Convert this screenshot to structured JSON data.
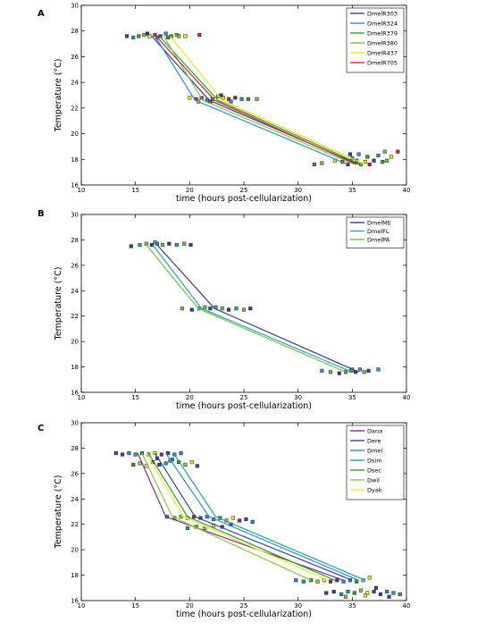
{
  "panel_labels": [
    "A",
    "B",
    "C"
  ],
  "axis": {
    "xlabel": "time (hours post-cellularization)",
    "ylabel": "Temperature (°C)"
  },
  "chart_data": [
    {
      "type": "line",
      "xlabel": "time (hours post-cellularization)",
      "ylabel": "Temperature (°C)",
      "xlim": [
        10,
        40
      ],
      "ylim": [
        16,
        30
      ],
      "xticks": [
        10,
        15,
        20,
        25,
        30,
        35,
        40
      ],
      "yticks": [
        16,
        18,
        20,
        22,
        24,
        26,
        28,
        30
      ],
      "legend": "top-right",
      "series": [
        {
          "name": "DmelR303",
          "color": "#3b3b8f",
          "x": [
            16.5,
            21.8,
            35.6
          ],
          "y": [
            27.6,
            22.6,
            17.6
          ]
        },
        {
          "name": "DmelR324",
          "color": "#2b8cd6",
          "x": [
            16.8,
            20.5,
            34.6
          ],
          "y": [
            27.6,
            22.6,
            17.6
          ]
        },
        {
          "name": "DmelR379",
          "color": "#2ca02c",
          "x": [
            17.2,
            22.6,
            35.8
          ],
          "y": [
            27.6,
            22.6,
            17.6
          ]
        },
        {
          "name": "DmelR380",
          "color": "#7fbf3f",
          "x": [
            17.6,
            21.2,
            35.2
          ],
          "y": [
            27.6,
            22.6,
            17.6
          ]
        },
        {
          "name": "DmelR437",
          "color": "#f2e21a",
          "x": [
            18.2,
            23.0,
            36.2
          ],
          "y": [
            27.6,
            22.6,
            17.6
          ]
        },
        {
          "name": "DmelR705",
          "color": "#e0242a",
          "x": [
            16.9,
            22.3,
            35.4
          ],
          "y": [
            27.6,
            22.6,
            17.6
          ]
        }
      ],
      "points": [
        {
          "x": 14.2,
          "y": 27.6
        },
        {
          "x": 14.8,
          "y": 27.5
        },
        {
          "x": 15.3,
          "y": 27.6
        },
        {
          "x": 15.8,
          "y": 27.7
        },
        {
          "x": 16.3,
          "y": 27.6
        },
        {
          "x": 16.8,
          "y": 27.7
        },
        {
          "x": 17.3,
          "y": 27.6
        },
        {
          "x": 17.8,
          "y": 27.8
        },
        {
          "x": 18.3,
          "y": 27.6
        },
        {
          "x": 18.8,
          "y": 27.7
        },
        {
          "x": 19.6,
          "y": 27.6
        },
        {
          "x": 20.9,
          "y": 27.7
        },
        {
          "x": 16.1,
          "y": 27.8
        },
        {
          "x": 17.0,
          "y": 27.5
        },
        {
          "x": 18.0,
          "y": 27.5
        },
        {
          "x": 19.0,
          "y": 27.6
        },
        {
          "x": 20.0,
          "y": 22.8
        },
        {
          "x": 20.6,
          "y": 22.7
        },
        {
          "x": 21.1,
          "y": 22.8
        },
        {
          "x": 21.6,
          "y": 22.6
        },
        {
          "x": 22.1,
          "y": 22.7
        },
        {
          "x": 22.6,
          "y": 22.9
        },
        {
          "x": 23.1,
          "y": 22.8
        },
        {
          "x": 23.6,
          "y": 22.7
        },
        {
          "x": 24.2,
          "y": 22.8
        },
        {
          "x": 24.8,
          "y": 22.7
        },
        {
          "x": 25.4,
          "y": 22.7
        },
        {
          "x": 26.2,
          "y": 22.7
        },
        {
          "x": 20.8,
          "y": 22.5
        },
        {
          "x": 21.9,
          "y": 22.5
        },
        {
          "x": 22.9,
          "y": 23.0
        },
        {
          "x": 23.8,
          "y": 22.5
        },
        {
          "x": 31.5,
          "y": 17.6
        },
        {
          "x": 32.2,
          "y": 17.7
        },
        {
          "x": 33.4,
          "y": 17.9
        },
        {
          "x": 34.1,
          "y": 17.8
        },
        {
          "x": 34.6,
          "y": 17.6
        },
        {
          "x": 35.0,
          "y": 18.1
        },
        {
          "x": 35.4,
          "y": 17.9
        },
        {
          "x": 35.8,
          "y": 17.6
        },
        {
          "x": 36.2,
          "y": 17.8
        },
        {
          "x": 36.6,
          "y": 17.6
        },
        {
          "x": 37.0,
          "y": 17.9
        },
        {
          "x": 37.4,
          "y": 18.3
        },
        {
          "x": 37.8,
          "y": 17.8
        },
        {
          "x": 38.2,
          "y": 17.9
        },
        {
          "x": 38.6,
          "y": 18.2
        },
        {
          "x": 39.2,
          "y": 18.6
        },
        {
          "x": 34.8,
          "y": 18.4
        },
        {
          "x": 35.6,
          "y": 18.4
        },
        {
          "x": 36.4,
          "y": 18.2
        },
        {
          "x": 38.0,
          "y": 18.6
        }
      ]
    },
    {
      "type": "line",
      "xlabel": "time (hours post-cellularization)",
      "ylabel": "Temperature (°C)",
      "xlim": [
        10,
        40
      ],
      "ylim": [
        16,
        30
      ],
      "xticks": [
        10,
        15,
        20,
        25,
        30,
        35,
        40
      ],
      "yticks": [
        16,
        18,
        20,
        22,
        24,
        26,
        28,
        30
      ],
      "legend": "top-right",
      "series": [
        {
          "name": "DmelME",
          "color": "#3b3b8f",
          "x": [
            17.0,
            22.3,
            35.6
          ],
          "y": [
            27.6,
            22.6,
            17.6
          ]
        },
        {
          "name": "DmelFL",
          "color": "#2aa5a5",
          "x": [
            16.6,
            21.1,
            35.0
          ],
          "y": [
            27.6,
            22.6,
            17.6
          ]
        },
        {
          "name": "DmelPA",
          "color": "#6cc24a",
          "x": [
            16.0,
            20.8,
            34.4
          ],
          "y": [
            27.6,
            22.6,
            17.6
          ]
        }
      ],
      "points": [
        {
          "x": 14.6,
          "y": 27.5
        },
        {
          "x": 15.4,
          "y": 27.6
        },
        {
          "x": 16.0,
          "y": 27.7
        },
        {
          "x": 16.5,
          "y": 27.6
        },
        {
          "x": 17.0,
          "y": 27.7
        },
        {
          "x": 17.5,
          "y": 27.6
        },
        {
          "x": 18.1,
          "y": 27.7
        },
        {
          "x": 18.8,
          "y": 27.6
        },
        {
          "x": 19.5,
          "y": 27.7
        },
        {
          "x": 20.1,
          "y": 27.6
        },
        {
          "x": 16.8,
          "y": 27.8
        },
        {
          "x": 19.3,
          "y": 22.6
        },
        {
          "x": 20.2,
          "y": 22.5
        },
        {
          "x": 20.9,
          "y": 22.6
        },
        {
          "x": 21.4,
          "y": 22.7
        },
        {
          "x": 21.9,
          "y": 22.6
        },
        {
          "x": 22.4,
          "y": 22.7
        },
        {
          "x": 23.0,
          "y": 22.6
        },
        {
          "x": 23.6,
          "y": 22.5
        },
        {
          "x": 24.3,
          "y": 22.6
        },
        {
          "x": 25.0,
          "y": 22.5
        },
        {
          "x": 25.6,
          "y": 22.6
        },
        {
          "x": 32.2,
          "y": 17.7
        },
        {
          "x": 33.0,
          "y": 17.6
        },
        {
          "x": 33.8,
          "y": 17.5
        },
        {
          "x": 34.4,
          "y": 17.6
        },
        {
          "x": 34.9,
          "y": 17.7
        },
        {
          "x": 35.3,
          "y": 17.6
        },
        {
          "x": 35.7,
          "y": 17.8
        },
        {
          "x": 36.1,
          "y": 17.6
        },
        {
          "x": 36.5,
          "y": 17.7
        },
        {
          "x": 37.4,
          "y": 17.8
        },
        {
          "x": 35.0,
          "y": 17.8
        }
      ]
    },
    {
      "type": "line",
      "xlabel": "time (hours post-cellularization)",
      "ylabel": "Temperature (°C)",
      "xlim": [
        10,
        40
      ],
      "ylim": [
        16,
        30
      ],
      "xticks": [
        10,
        15,
        20,
        25,
        30,
        35,
        40
      ],
      "yticks": [
        16,
        18,
        20,
        22,
        24,
        26,
        28,
        30
      ],
      "legend": "top-right",
      "series": [
        {
          "name": "Dana",
          "color": "#7b2a8e",
          "x": [
            15.2,
            17.8,
            34.2
          ],
          "y": [
            27.6,
            22.6,
            17.6
          ]
        },
        {
          "name": "Dere",
          "color": "#3a3f9a",
          "x": [
            16.8,
            20.5,
            35.0
          ],
          "y": [
            27.6,
            22.6,
            17.6
          ]
        },
        {
          "name": "Dmel",
          "color": "#2b8cd6",
          "x": [
            17.8,
            21.8,
            35.6
          ],
          "y": [
            27.6,
            22.6,
            17.6
          ]
        },
        {
          "name": "Dsim",
          "color": "#1f9ea0",
          "x": [
            18.5,
            22.4,
            36.2
          ],
          "y": [
            27.6,
            22.6,
            17.6
          ]
        },
        {
          "name": "Dsec",
          "color": "#2ca02c",
          "x": [
            16.2,
            19.8,
            33.4
          ],
          "y": [
            27.6,
            22.6,
            17.6
          ]
        },
        {
          "name": "Dwil",
          "color": "#8cc63f",
          "x": [
            15.6,
            18.4,
            31.2
          ],
          "y": [
            27.6,
            22.6,
            17.6
          ]
        },
        {
          "name": "Dyak",
          "color": "#f5e62a",
          "x": [
            16.0,
            19.4,
            32.8
          ],
          "y": [
            27.6,
            22.6,
            17.6
          ]
        }
      ],
      "points": [
        {
          "x": 13.2,
          "y": 27.6
        },
        {
          "x": 13.8,
          "y": 27.5
        },
        {
          "x": 14.4,
          "y": 27.6
        },
        {
          "x": 15.0,
          "y": 27.5
        },
        {
          "x": 15.6,
          "y": 27.6
        },
        {
          "x": 16.2,
          "y": 27.5
        },
        {
          "x": 16.8,
          "y": 27.6
        },
        {
          "x": 17.4,
          "y": 27.5
        },
        {
          "x": 18.0,
          "y": 27.6
        },
        {
          "x": 18.6,
          "y": 27.5
        },
        {
          "x": 19.2,
          "y": 27.6
        },
        {
          "x": 14.8,
          "y": 26.7
        },
        {
          "x": 15.4,
          "y": 26.8
        },
        {
          "x": 16.0,
          "y": 26.6
        },
        {
          "x": 16.6,
          "y": 26.9
        },
        {
          "x": 17.2,
          "y": 26.7
        },
        {
          "x": 17.8,
          "y": 26.8
        },
        {
          "x": 18.4,
          "y": 27.1
        },
        {
          "x": 19.0,
          "y": 26.9
        },
        {
          "x": 19.6,
          "y": 26.7
        },
        {
          "x": 20.2,
          "y": 26.9
        },
        {
          "x": 20.7,
          "y": 26.6
        },
        {
          "x": 17.0,
          "y": 27.2
        },
        {
          "x": 18.2,
          "y": 27.0
        },
        {
          "x": 17.9,
          "y": 22.6
        },
        {
          "x": 18.6,
          "y": 22.5
        },
        {
          "x": 19.2,
          "y": 22.6
        },
        {
          "x": 19.8,
          "y": 22.5
        },
        {
          "x": 20.4,
          "y": 22.6
        },
        {
          "x": 21.0,
          "y": 22.5
        },
        {
          "x": 21.6,
          "y": 22.6
        },
        {
          "x": 22.2,
          "y": 22.4
        },
        {
          "x": 22.8,
          "y": 22.5
        },
        {
          "x": 23.4,
          "y": 22.3
        },
        {
          "x": 24.0,
          "y": 22.5
        },
        {
          "x": 24.6,
          "y": 22.3
        },
        {
          "x": 25.2,
          "y": 22.4
        },
        {
          "x": 25.8,
          "y": 22.2
        },
        {
          "x": 19.8,
          "y": 21.7
        },
        {
          "x": 20.6,
          "y": 21.8
        },
        {
          "x": 21.4,
          "y": 21.7
        },
        {
          "x": 22.2,
          "y": 21.9
        },
        {
          "x": 23.0,
          "y": 21.8
        },
        {
          "x": 23.8,
          "y": 22.0
        },
        {
          "x": 29.8,
          "y": 17.6
        },
        {
          "x": 30.5,
          "y": 17.5
        },
        {
          "x": 31.2,
          "y": 17.6
        },
        {
          "x": 31.8,
          "y": 17.5
        },
        {
          "x": 32.4,
          "y": 17.6
        },
        {
          "x": 33.0,
          "y": 17.5
        },
        {
          "x": 33.6,
          "y": 17.6
        },
        {
          "x": 34.2,
          "y": 17.5
        },
        {
          "x": 34.8,
          "y": 17.6
        },
        {
          "x": 35.4,
          "y": 17.5
        },
        {
          "x": 36.0,
          "y": 17.6
        },
        {
          "x": 36.6,
          "y": 17.8
        },
        {
          "x": 32.6,
          "y": 16.6
        },
        {
          "x": 33.3,
          "y": 16.7
        },
        {
          "x": 34.0,
          "y": 16.5
        },
        {
          "x": 34.6,
          "y": 16.7
        },
        {
          "x": 35.2,
          "y": 16.6
        },
        {
          "x": 35.8,
          "y": 16.8
        },
        {
          "x": 36.4,
          "y": 16.6
        },
        {
          "x": 37.0,
          "y": 16.7
        },
        {
          "x": 37.6,
          "y": 16.5
        },
        {
          "x": 38.2,
          "y": 16.7
        },
        {
          "x": 38.8,
          "y": 16.6
        },
        {
          "x": 39.4,
          "y": 16.5
        },
        {
          "x": 34.4,
          "y": 16.3
        },
        {
          "x": 36.2,
          "y": 16.4
        },
        {
          "x": 38.4,
          "y": 16.3
        },
        {
          "x": 37.2,
          "y": 17.0
        }
      ]
    }
  ]
}
